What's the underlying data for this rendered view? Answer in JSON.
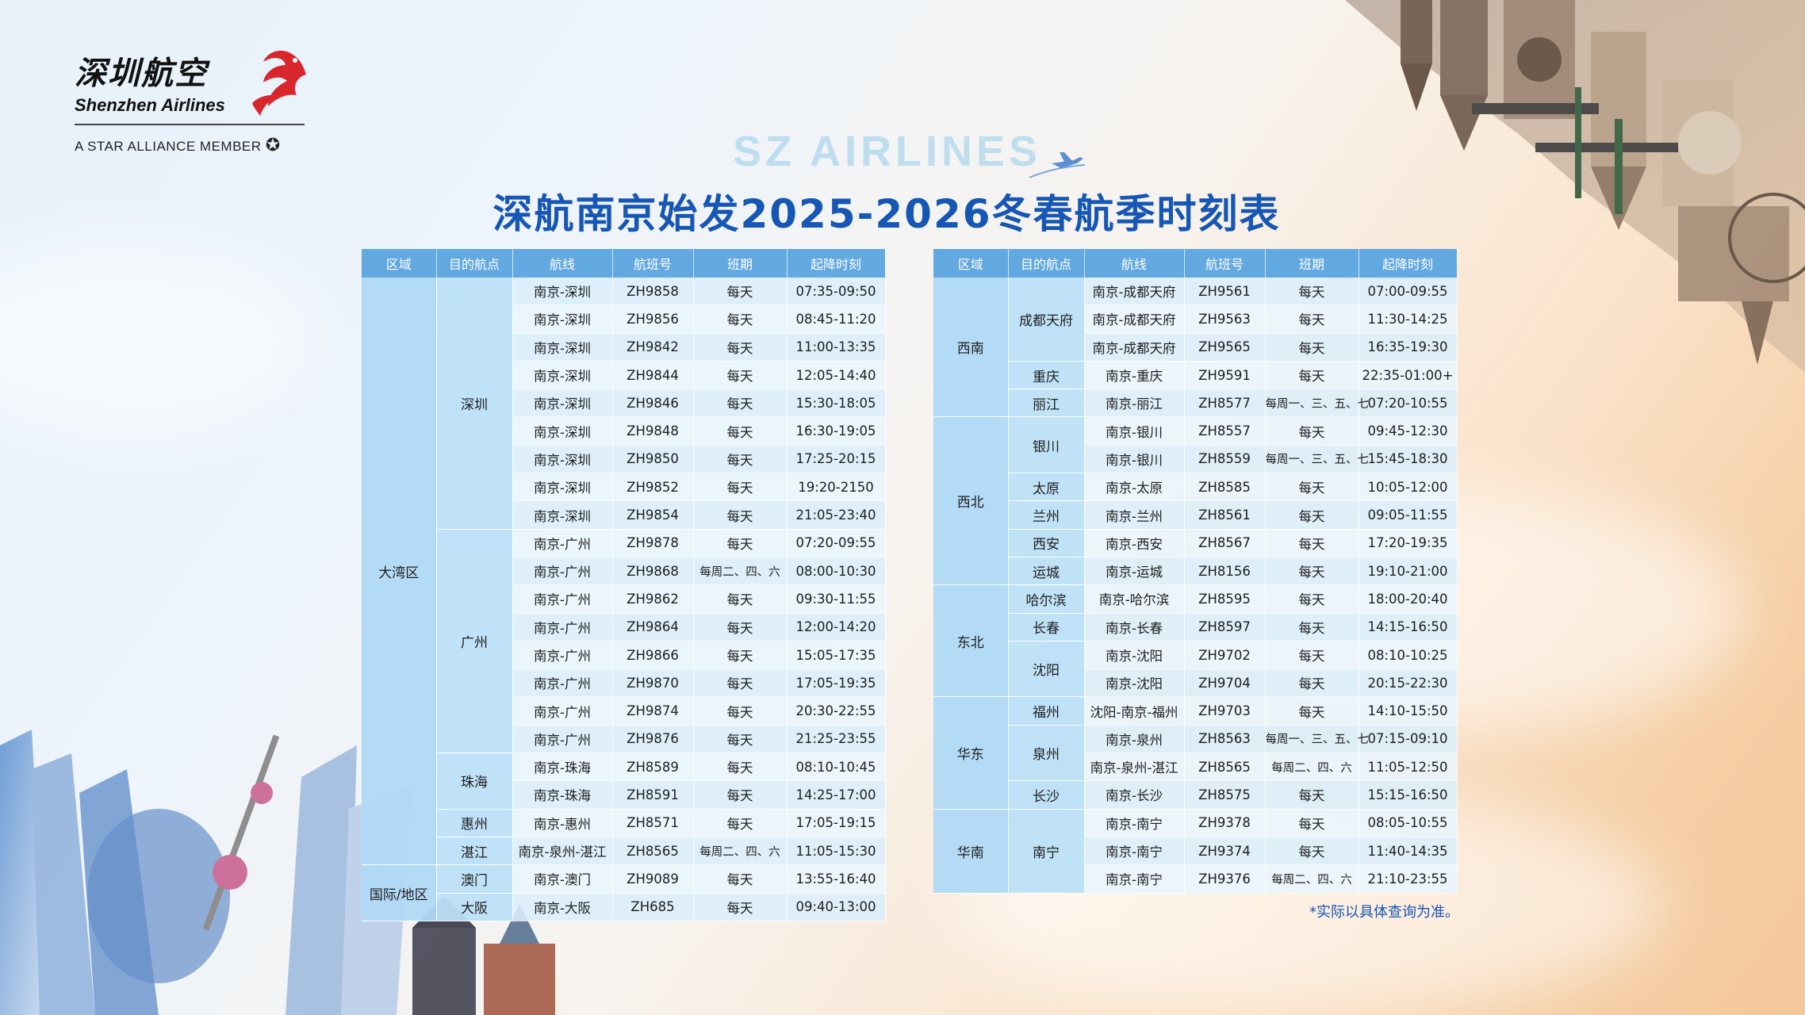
{
  "brand": {
    "name_cn": "深圳航空",
    "name_en": "Shenzhen Airlines",
    "alliance": "A STAR ALLIANCE MEMBER",
    "accent": "#d8262d"
  },
  "subtitle": "SZ AIRLINES",
  "title": "深航南京始发2025-2026冬春航季时刻表",
  "table_headers": [
    "区域",
    "目的航点",
    "航线",
    "航班号",
    "班期",
    "起降时刻"
  ],
  "left_rows": [
    [
      "南京-深圳",
      "ZH9858",
      "每天",
      "07:35-09:50"
    ],
    [
      "南京-深圳",
      "ZH9856",
      "每天",
      "08:45-11:20"
    ],
    [
      "南京-深圳",
      "ZH9842",
      "每天",
      "11:00-13:35"
    ],
    [
      "南京-深圳",
      "ZH9844",
      "每天",
      "12:05-14:40"
    ],
    [
      "南京-深圳",
      "ZH9846",
      "每天",
      "15:30-18:05"
    ],
    [
      "南京-深圳",
      "ZH9848",
      "每天",
      "16:30-19:05"
    ],
    [
      "南京-深圳",
      "ZH9850",
      "每天",
      "17:25-20:15"
    ],
    [
      "南京-深圳",
      "ZH9852",
      "每天",
      "19:20-2150"
    ],
    [
      "南京-深圳",
      "ZH9854",
      "每天",
      "21:05-23:40"
    ],
    [
      "南京-广州",
      "ZH9878",
      "每天",
      "07:20-09:55"
    ],
    [
      "南京-广州",
      "ZH9868",
      "每周二、四、六",
      "08:00-10:30"
    ],
    [
      "南京-广州",
      "ZH9862",
      "每天",
      "09:30-11:55"
    ],
    [
      "南京-广州",
      "ZH9864",
      "每天",
      "12:00-14:20"
    ],
    [
      "南京-广州",
      "ZH9866",
      "每天",
      "15:05-17:35"
    ],
    [
      "南京-广州",
      "ZH9870",
      "每天",
      "17:05-19:35"
    ],
    [
      "南京-广州",
      "ZH9874",
      "每天",
      "20:30-22:55"
    ],
    [
      "南京-广州",
      "ZH9876",
      "每天",
      "21:25-23:55"
    ],
    [
      "南京-珠海",
      "ZH8589",
      "每天",
      "08:10-10:45"
    ],
    [
      "南京-珠海",
      "ZH8591",
      "每天",
      "14:25-17:00"
    ],
    [
      "南京-惠州",
      "ZH8571",
      "每天",
      "17:05-19:15"
    ],
    [
      "南京-泉州-湛江",
      "ZH8565",
      "每周二、四、六",
      "11:05-15:30"
    ],
    [
      "南京-澳门",
      "ZH9089",
      "每天",
      "13:55-16:40"
    ],
    [
      "南京-大阪",
      "ZH685",
      "每天",
      "09:40-13:00"
    ]
  ],
  "left_regions": [
    {
      "label": "大湾区",
      "start": 0,
      "span": 21
    },
    {
      "label": "国际/地区",
      "start": 21,
      "span": 2
    }
  ],
  "left_cities": [
    {
      "label": "深圳",
      "start": 0,
      "span": 9
    },
    {
      "label": "广州",
      "start": 9,
      "span": 8
    },
    {
      "label": "珠海",
      "start": 17,
      "span": 2
    },
    {
      "label": "惠州",
      "start": 19,
      "span": 1
    },
    {
      "label": "湛江",
      "start": 20,
      "span": 1
    },
    {
      "label": "澳门",
      "start": 21,
      "span": 1
    },
    {
      "label": "大阪",
      "start": 22,
      "span": 1
    }
  ],
  "right_rows": [
    [
      "南京-成都天府",
      "ZH9561",
      "每天",
      "07:00-09:55"
    ],
    [
      "南京-成都天府",
      "ZH9563",
      "每天",
      "11:30-14:25"
    ],
    [
      "南京-成都天府",
      "ZH9565",
      "每天",
      "16:35-19:30"
    ],
    [
      "南京-重庆",
      "ZH9591",
      "每天",
      "22:35-01:00+"
    ],
    [
      "南京-丽江",
      "ZH8577",
      "每周一、三、五、七",
      "07:20-10:55"
    ],
    [
      "南京-银川",
      "ZH8557",
      "每天",
      "09:45-12:30"
    ],
    [
      "南京-银川",
      "ZH8559",
      "每周一、三、五、七",
      "15:45-18:30"
    ],
    [
      "南京-太原",
      "ZH8585",
      "每天",
      "10:05-12:00"
    ],
    [
      "南京-兰州",
      "ZH8561",
      "每天",
      "09:05-11:55"
    ],
    [
      "南京-西安",
      "ZH8567",
      "每天",
      "17:20-19:35"
    ],
    [
      "南京-运城",
      "ZH8156",
      "每天",
      "19:10-21:00"
    ],
    [
      "南京-哈尔滨",
      "ZH8595",
      "每天",
      "18:00-20:40"
    ],
    [
      "南京-长春",
      "ZH8597",
      "每天",
      "14:15-16:50"
    ],
    [
      "南京-沈阳",
      "ZH9702",
      "每天",
      "08:10-10:25"
    ],
    [
      "南京-沈阳",
      "ZH9704",
      "每天",
      "20:15-22:30"
    ],
    [
      "沈阳-南京-福州",
      "ZH9703",
      "每天",
      "14:10-15:50"
    ],
    [
      "南京-泉州",
      "ZH8563",
      "每周一、三、五、七",
      "07:15-09:10"
    ],
    [
      "南京-泉州-湛江",
      "ZH8565",
      "每周二、四、六",
      "11:05-12:50"
    ],
    [
      "南京-长沙",
      "ZH8575",
      "每天",
      "15:15-16:50"
    ],
    [
      "南京-南宁",
      "ZH9378",
      "每天",
      "08:05-10:55"
    ],
    [
      "南京-南宁",
      "ZH9374",
      "每天",
      "11:40-14:35"
    ],
    [
      "南京-南宁",
      "ZH9376",
      "每周二、四、六",
      "21:10-23:55"
    ]
  ],
  "right_regions": [
    {
      "label": "西南",
      "start": 0,
      "span": 5
    },
    {
      "label": "西北",
      "start": 5,
      "span": 6
    },
    {
      "label": "东北",
      "start": 11,
      "span": 4
    },
    {
      "label": "华东",
      "start": 15,
      "span": 4
    },
    {
      "label": "华南",
      "start": 19,
      "span": 3
    }
  ],
  "right_cities": [
    {
      "label": "成都天府",
      "start": 0,
      "span": 3
    },
    {
      "label": "重庆",
      "start": 3,
      "span": 1
    },
    {
      "label": "丽江",
      "start": 4,
      "span": 1
    },
    {
      "label": "银川",
      "start": 5,
      "span": 2
    },
    {
      "label": "太原",
      "start": 7,
      "span": 1
    },
    {
      "label": "兰州",
      "start": 8,
      "span": 1
    },
    {
      "label": "西安",
      "start": 9,
      "span": 1
    },
    {
      "label": "运城",
      "start": 10,
      "span": 1
    },
    {
      "label": "哈尔滨",
      "start": 11,
      "span": 1
    },
    {
      "label": "长春",
      "start": 12,
      "span": 1
    },
    {
      "label": "沈阳",
      "start": 13,
      "span": 2
    },
    {
      "label": "福州",
      "start": 15,
      "span": 1
    },
    {
      "label": "泉州",
      "start": 16,
      "span": 2
    },
    {
      "label": "长沙",
      "start": 18,
      "span": 1
    },
    {
      "label": "南宁",
      "start": 19,
      "span": 3
    }
  ],
  "note": "*实际以具体查询为准。"
}
